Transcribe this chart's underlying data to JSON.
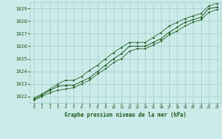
{
  "title": "Graphe pression niveau de la mer (hPa)",
  "bg_color": "#cceae8",
  "grid_color": "#99cccc",
  "line_color": "#1a5c1a",
  "xlabel_color": "#1a5c1a",
  "x_values": [
    0,
    1,
    2,
    3,
    4,
    5,
    6,
    7,
    8,
    9,
    10,
    11,
    12,
    13,
    14,
    15,
    16,
    17,
    18,
    19,
    20,
    21,
    22,
    23
  ],
  "y_main": [
    1021.8,
    1022.1,
    1022.5,
    1022.8,
    1022.9,
    1022.9,
    1023.2,
    1023.5,
    1024.0,
    1024.5,
    1025.0,
    1025.4,
    1026.0,
    1026.0,
    1026.0,
    1026.3,
    1026.6,
    1027.1,
    1027.5,
    1027.9,
    1028.1,
    1028.3,
    1029.0,
    1029.1
  ],
  "y_upper": [
    1021.9,
    1022.2,
    1022.6,
    1023.0,
    1023.3,
    1023.3,
    1023.6,
    1024.1,
    1024.5,
    1025.0,
    1025.5,
    1025.9,
    1026.3,
    1026.3,
    1026.3,
    1026.7,
    1027.1,
    1027.6,
    1027.9,
    1028.2,
    1028.4,
    1028.6,
    1029.2,
    1029.4
  ],
  "y_lower": [
    1021.7,
    1022.0,
    1022.3,
    1022.5,
    1022.6,
    1022.7,
    1023.0,
    1023.3,
    1023.8,
    1024.2,
    1024.7,
    1025.0,
    1025.6,
    1025.8,
    1025.8,
    1026.1,
    1026.4,
    1026.9,
    1027.2,
    1027.6,
    1027.9,
    1028.1,
    1028.7,
    1028.9
  ],
  "ylim": [
    1021.5,
    1029.5
  ],
  "yticks": [
    1022,
    1023,
    1024,
    1025,
    1026,
    1027,
    1028,
    1029
  ],
  "xlim": [
    -0.5,
    23.5
  ],
  "xticks": [
    0,
    1,
    2,
    3,
    4,
    5,
    6,
    7,
    8,
    9,
    10,
    11,
    12,
    13,
    14,
    15,
    16,
    17,
    18,
    19,
    20,
    21,
    22,
    23
  ]
}
